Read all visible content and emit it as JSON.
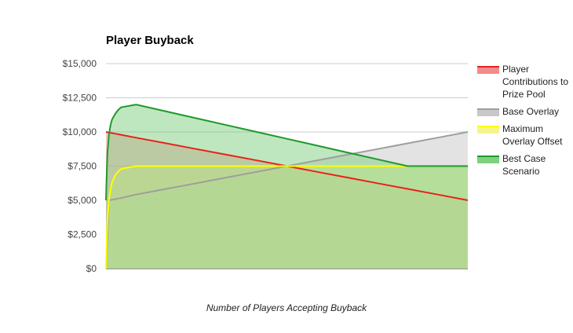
{
  "chart_data": {
    "type": "area",
    "title": "Player Buyback",
    "xlabel": "Number of Players Accepting Buyback",
    "ylabel": "",
    "ylim": [
      0,
      15000
    ],
    "y_ticks": [
      "$0",
      "$2,500",
      "$5,000",
      "$7,500",
      "$10,000",
      "$12,500",
      "$15,000"
    ],
    "y_tick_values": [
      0,
      2500,
      5000,
      7500,
      10000,
      12500,
      15000
    ],
    "grid": true,
    "legend_position": "right",
    "x": [
      0,
      0.25,
      0.5,
      1,
      1.5,
      2,
      3,
      4,
      5,
      10,
      20,
      30,
      40,
      50,
      60,
      70,
      80,
      90,
      100,
      110,
      120
    ],
    "series": [
      {
        "name": "Player Contributions to Prize Pool",
        "color": "#e8221a",
        "fill": "#f08c8c",
        "values": [
          10000,
          9990,
          9979,
          9958,
          9938,
          9917,
          9875,
          9833,
          9792,
          9583,
          9167,
          8750,
          8333,
          7917,
          7500,
          7083,
          6667,
          6250,
          5833,
          5417,
          5000
        ]
      },
      {
        "name": "Base Overlay",
        "color": "#9e9e9e",
        "fill": "#c8c8c8",
        "values": [
          0,
          1250,
          2500,
          5000,
          5021,
          5042,
          5083,
          5125,
          5167,
          5417,
          5833,
          6250,
          6667,
          7083,
          7500,
          7917,
          8333,
          8750,
          9167,
          9583,
          10000
        ]
      },
      {
        "name": "Maximum Overlay Offset",
        "color": "#ffff00",
        "fill": "#f6f58a",
        "values": [
          0,
          2200,
          3500,
          5000,
          5800,
          6300,
          6800,
          7100,
          7300,
          7500,
          7500,
          7500,
          7500,
          7500,
          7500,
          7500,
          7500,
          7500,
          7500,
          7500,
          7500
        ]
      },
      {
        "name": "Best Case Scenario",
        "color": "#1e9a2b",
        "fill": "#7fd07f",
        "values": [
          5000,
          7000,
          8500,
          9800,
          10500,
          10900,
          11300,
          11600,
          11800,
          12000,
          11500,
          11000,
          10500,
          10000,
          9500,
          9000,
          8500,
          8000,
          7500,
          7500,
          7500
        ]
      }
    ]
  }
}
